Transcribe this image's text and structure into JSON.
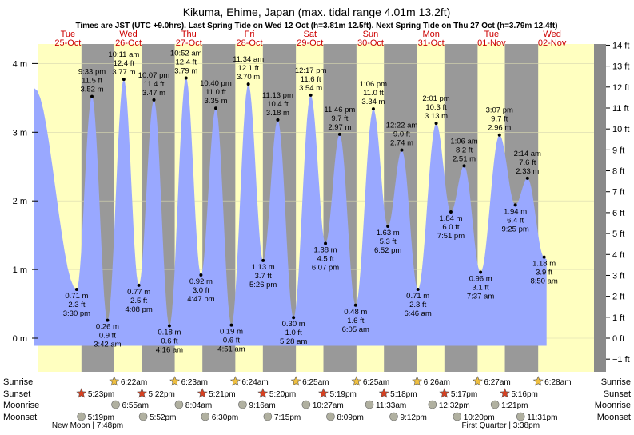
{
  "header": {
    "title": "Kikuma, Ehime, Japan (max. tidal range 4.01m 13.2ft)",
    "subtitle": "Times are JST (UTC +9.0hrs). Last Spring Tide on Wed 12 Oct (h=3.81m 12.5ft). Next Spring Tide on Thu 27 Oct (h=3.79m 12.4ft)"
  },
  "colors": {
    "day": "#ffffc0",
    "night": "#999999",
    "tide": "#99a8ff",
    "edge": "#8a8a8a",
    "date_red": "#cc0000",
    "sun_star": "#f0c040",
    "sunset_star": "#d84020",
    "moon_disc": "#b0b0a0"
  },
  "chart_data": {
    "type": "area",
    "title": "Kikuma, Ehime, Japan (max. tidal range 4.01m 13.2ft)",
    "x_unit": "hours since 2022-10-25 00:00 JST",
    "xlim": [
      0,
      220.6
    ],
    "ylim": [
      -0.3,
      4.3
    ],
    "ylabel_left": "m",
    "ylabel_right": "ft",
    "left_ticks": [
      {
        "v": 0,
        "label": "0 m"
      },
      {
        "v": 1,
        "label": "1 m"
      },
      {
        "v": 2,
        "label": "2 m"
      },
      {
        "v": 3,
        "label": "3 m"
      },
      {
        "v": 4,
        "label": "4 m"
      }
    ],
    "right_ticks": [
      {
        "ft": -1,
        "label": "−1 ft"
      },
      {
        "ft": 0,
        "label": "0 ft"
      },
      {
        "ft": 1,
        "label": "1 ft"
      },
      {
        "ft": 2,
        "label": "2 ft"
      },
      {
        "ft": 3,
        "label": "3 ft"
      },
      {
        "ft": 4,
        "label": "4 ft"
      },
      {
        "ft": 5,
        "label": "5 ft"
      },
      {
        "ft": 6,
        "label": "6 ft"
      },
      {
        "ft": 7,
        "label": "7 ft"
      },
      {
        "ft": 8,
        "label": "8 ft"
      },
      {
        "ft": 9,
        "label": "9 ft"
      },
      {
        "ft": 10,
        "label": "10 ft"
      },
      {
        "ft": 11,
        "label": "11 ft"
      },
      {
        "ft": 12,
        "label": "12 ft"
      },
      {
        "ft": 13,
        "label": "13 ft"
      },
      {
        "ft": 14,
        "label": "14 ft"
      }
    ],
    "days": [
      {
        "dow": "Tue",
        "date": "25-Oct"
      },
      {
        "dow": "Wed",
        "date": "26-Oct"
      },
      {
        "dow": "Thu",
        "date": "27-Oct"
      },
      {
        "dow": "Fri",
        "date": "28-Oct"
      },
      {
        "dow": "Sat",
        "date": "29-Oct"
      },
      {
        "dow": "Sun",
        "date": "30-Oct"
      },
      {
        "dow": "Mon",
        "date": "31-Oct"
      },
      {
        "dow": "Tue",
        "date": "01-Nov"
      },
      {
        "dow": "Wed",
        "date": "02-Nov"
      }
    ],
    "series_start": {
      "t": -1.3,
      "h": 3.64
    },
    "extremes": [
      {
        "t": 15.5,
        "h": 0.71,
        "kind": "low",
        "time": "3:30 pm",
        "m": "0.71 m",
        "ft": "2.3 ft"
      },
      {
        "t": 21.55,
        "h": 3.52,
        "kind": "high",
        "time": "9:33 pm",
        "m": "3.52 m",
        "ft": "11.5 ft"
      },
      {
        "t": 27.7,
        "h": 0.26,
        "kind": "low",
        "time": "3:42 am",
        "m": "0.26 m",
        "ft": "0.9 ft"
      },
      {
        "t": 34.18,
        "h": 3.77,
        "kind": "high",
        "time": "10:11 am",
        "m": "3.77 m",
        "ft": "12.4 ft"
      },
      {
        "t": 40.13,
        "h": 0.77,
        "kind": "low",
        "time": "4:08 pm",
        "m": "0.77 m",
        "ft": "2.5 ft"
      },
      {
        "t": 46.12,
        "h": 3.47,
        "kind": "high",
        "time": "10:07 pm",
        "m": "3.47 m",
        "ft": "11.4 ft"
      },
      {
        "t": 52.27,
        "h": 0.18,
        "kind": "low",
        "time": "4:16 am",
        "m": "0.18 m",
        "ft": "0.6 ft"
      },
      {
        "t": 58.87,
        "h": 3.79,
        "kind": "high",
        "time": "10:52 am",
        "m": "3.79 m",
        "ft": "12.4 ft"
      },
      {
        "t": 64.78,
        "h": 0.92,
        "kind": "low",
        "time": "4:47 pm",
        "m": "0.92 m",
        "ft": "3.0 ft"
      },
      {
        "t": 70.67,
        "h": 3.35,
        "kind": "high",
        "time": "10:40 pm",
        "m": "3.35 m",
        "ft": "11.0 ft"
      },
      {
        "t": 76.85,
        "h": 0.19,
        "kind": "low",
        "time": "4:51 am",
        "m": "0.19 m",
        "ft": "0.6 ft"
      },
      {
        "t": 83.57,
        "h": 3.7,
        "kind": "high",
        "time": "11:34 am",
        "m": "3.70 m",
        "ft": "12.1 ft"
      },
      {
        "t": 89.43,
        "h": 1.13,
        "kind": "low",
        "time": "5:26 pm",
        "m": "1.13 m",
        "ft": "3.7 ft"
      },
      {
        "t": 95.22,
        "h": 3.18,
        "kind": "high",
        "time": "11:13 pm",
        "m": "3.18 m",
        "ft": "10.4 ft"
      },
      {
        "t": 101.47,
        "h": 0.3,
        "kind": "low",
        "time": "5:28 am",
        "m": "0.30 m",
        "ft": "1.0 ft"
      },
      {
        "t": 108.28,
        "h": 3.54,
        "kind": "high",
        "time": "12:17 pm",
        "m": "3.54 m",
        "ft": "11.6 ft"
      },
      {
        "t": 114.12,
        "h": 1.38,
        "kind": "low",
        "time": "6:07 pm",
        "m": "1.38 m",
        "ft": "4.5 ft"
      },
      {
        "t": 119.77,
        "h": 2.97,
        "kind": "high",
        "time": "11:46 pm",
        "m": "2.97 m",
        "ft": "9.7 ft"
      },
      {
        "t": 126.08,
        "h": 0.48,
        "kind": "low",
        "time": "6:05 am",
        "m": "0.48 m",
        "ft": "1.6 ft"
      },
      {
        "t": 133.1,
        "h": 3.34,
        "kind": "high",
        "time": "1:06 pm",
        "m": "3.34 m",
        "ft": "11.0 ft"
      },
      {
        "t": 138.87,
        "h": 1.63,
        "kind": "low",
        "time": "6:52 pm",
        "m": "1.63 m",
        "ft": "5.3 ft"
      },
      {
        "t": 144.37,
        "h": 2.74,
        "kind": "high",
        "time": "12:22 am",
        "m": "2.74 m",
        "ft": "9.0 ft"
      },
      {
        "t": 150.77,
        "h": 0.71,
        "kind": "low",
        "time": "6:46 am",
        "m": "0.71 m",
        "ft": "2.3 ft"
      },
      {
        "t": 158.02,
        "h": 3.13,
        "kind": "high",
        "time": "2:01 pm",
        "m": "3.13 m",
        "ft": "10.3 ft"
      },
      {
        "t": 163.85,
        "h": 1.84,
        "kind": "low",
        "time": "7:51 pm",
        "m": "1.84 m",
        "ft": "6.0 ft"
      },
      {
        "t": 169.1,
        "h": 2.51,
        "kind": "high",
        "time": "1:06 am",
        "m": "2.51 m",
        "ft": "8.2 ft"
      },
      {
        "t": 175.62,
        "h": 0.96,
        "kind": "low",
        "time": "7:37 am",
        "m": "0.96 m",
        "ft": "3.1 ft"
      },
      {
        "t": 183.12,
        "h": 2.96,
        "kind": "high",
        "time": "3:07 pm",
        "m": "2.96 m",
        "ft": "9.7 ft"
      },
      {
        "t": 189.42,
        "h": 1.94,
        "kind": "low",
        "time": "9:25 pm",
        "m": "1.94 m",
        "ft": "6.4 ft"
      },
      {
        "t": 194.23,
        "h": 2.33,
        "kind": "high",
        "time": "2:14 am",
        "m": "2.33 m",
        "ft": "7.6 ft"
      },
      {
        "t": 200.83,
        "h": 1.18,
        "kind": "low",
        "time": "8:50 am",
        "m": "1.18 m",
        "ft": "3.9 ft"
      }
    ],
    "series_end": {
      "t": 201.8,
      "h": 1.15
    },
    "rows": {
      "sunrise": "Sunrise",
      "sunset": "Sunset",
      "moonrise": "Moonrise",
      "moonset": "Moonset"
    },
    "sunrise": [
      {
        "t": 30.37,
        "label": "6:22am"
      },
      {
        "t": 54.38,
        "label": "6:23am"
      },
      {
        "t": 78.4,
        "label": "6:24am"
      },
      {
        "t": 102.42,
        "label": "6:25am"
      },
      {
        "t": 126.42,
        "label": "6:25am"
      },
      {
        "t": 150.43,
        "label": "6:26am"
      },
      {
        "t": 174.45,
        "label": "6:27am"
      },
      {
        "t": 198.47,
        "label": "6:28am"
      }
    ],
    "sunset": [
      {
        "t": 17.38,
        "label": "5:23pm"
      },
      {
        "t": 41.37,
        "label": "5:22pm"
      },
      {
        "t": 65.35,
        "label": "5:21pm"
      },
      {
        "t": 89.33,
        "label": "5:20pm"
      },
      {
        "t": 113.32,
        "label": "5:19pm"
      },
      {
        "t": 137.3,
        "label": "5:18pm"
      },
      {
        "t": 161.28,
        "label": "5:17pm"
      },
      {
        "t": 185.27,
        "label": "5:16pm"
      }
    ],
    "moonrise": [
      {
        "t": 30.92,
        "label": "6:55am"
      },
      {
        "t": 56.07,
        "label": "8:04am"
      },
      {
        "t": 81.27,
        "label": "9:16am"
      },
      {
        "t": 106.45,
        "label": "10:27am"
      },
      {
        "t": 131.55,
        "label": "11:33am"
      },
      {
        "t": 156.53,
        "label": "12:32pm"
      },
      {
        "t": 181.35,
        "label": "1:21pm"
      }
    ],
    "moonset": [
      {
        "t": 17.32,
        "label": "5:19pm"
      },
      {
        "t": 41.87,
        "label": "5:52pm"
      },
      {
        "t": 66.5,
        "label": "6:30pm"
      },
      {
        "t": 91.25,
        "label": "7:15pm"
      },
      {
        "t": 116.15,
        "label": "8:09pm"
      },
      {
        "t": 141.2,
        "label": "9:12pm"
      },
      {
        "t": 166.33,
        "label": "10:20pm"
      },
      {
        "t": 191.52,
        "label": "11:31pm"
      }
    ],
    "moon_phases": [
      {
        "t": 19.8,
        "label": "New Moon | 7:48pm"
      },
      {
        "t": 183.6,
        "label": "First Quarter | 3:38pm"
      }
    ]
  }
}
